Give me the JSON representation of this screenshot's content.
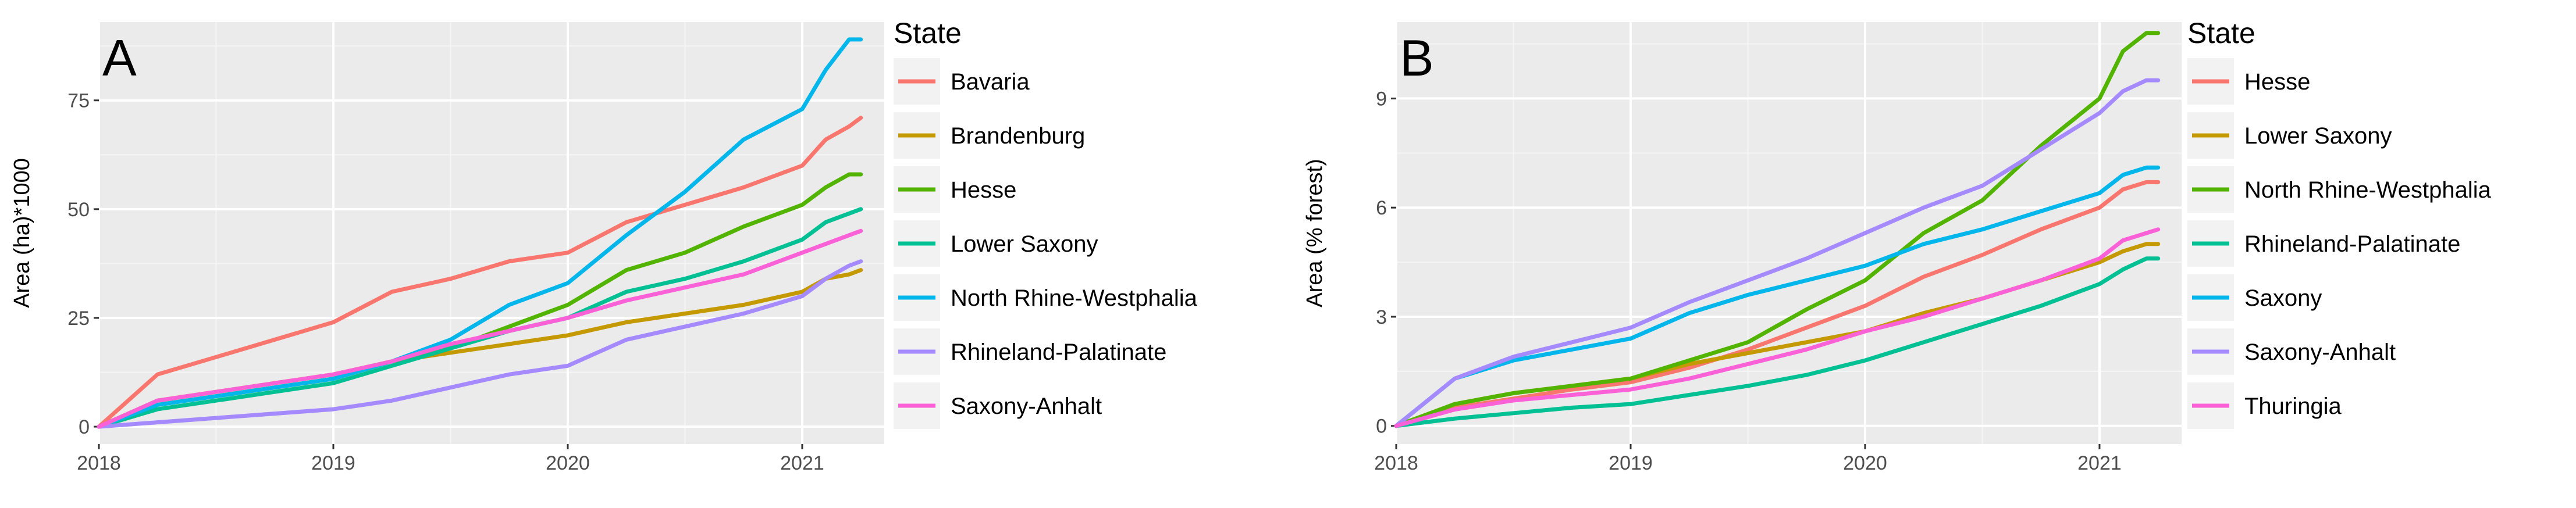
{
  "chart_data": [
    {
      "type": "line",
      "panel_label": "A",
      "ylabel": "Area (ha)*1000",
      "xlabel": "",
      "xlim": [
        2018.0,
        2021.35
      ],
      "ylim": [
        -4,
        93
      ],
      "x_ticks": [
        2018,
        2019,
        2020,
        2021
      ],
      "x_tick_labels": [
        "2018",
        "2019",
        "2020",
        "2021"
      ],
      "y_ticks": [
        0,
        25,
        50,
        75
      ],
      "y_tick_labels": [
        "0",
        "25",
        "50",
        "75"
      ],
      "legend_title": "State",
      "grid": true,
      "x": [
        2018.0,
        2018.25,
        2018.5,
        2018.75,
        2019.0,
        2019.25,
        2019.5,
        2019.75,
        2020.0,
        2020.25,
        2020.5,
        2020.75,
        2021.0,
        2021.1,
        2021.2,
        2021.25
      ],
      "series": [
        {
          "name": "Bavaria",
          "color": "#F8766D",
          "values": [
            0,
            12,
            16,
            20,
            24,
            31,
            34,
            38,
            40,
            47,
            51,
            55,
            60,
            66,
            69,
            71
          ]
        },
        {
          "name": "Brandenburg",
          "color": "#C49A00",
          "values": [
            0,
            6,
            8,
            10,
            12,
            15,
            17,
            19,
            21,
            24,
            26,
            28,
            31,
            34,
            35,
            36
          ]
        },
        {
          "name": "Hesse",
          "color": "#53B400",
          "values": [
            0,
            5,
            7,
            9,
            11,
            15,
            18,
            23,
            28,
            36,
            40,
            46,
            51,
            55,
            58,
            58
          ]
        },
        {
          "name": "Lower Saxony",
          "color": "#00C094",
          "values": [
            0,
            4,
            6,
            8,
            10,
            14,
            18,
            22,
            25,
            31,
            34,
            38,
            43,
            47,
            49,
            50
          ]
        },
        {
          "name": "North Rhine-Westphalia",
          "color": "#00B6EB",
          "values": [
            0,
            5,
            7,
            9,
            11,
            15,
            20,
            28,
            33,
            44,
            54,
            66,
            73,
            82,
            89,
            89
          ]
        },
        {
          "name": "Rhineland-Palatinate",
          "color": "#A58AFF",
          "values": [
            0,
            1,
            2,
            3,
            4,
            6,
            9,
            12,
            14,
            20,
            23,
            26,
            30,
            34,
            37,
            38
          ]
        },
        {
          "name": "Saxony-Anhalt",
          "color": "#FB61D7",
          "values": [
            0,
            6,
            8,
            10,
            12,
            15,
            19,
            22,
            25,
            29,
            32,
            35,
            40,
            42,
            44,
            45
          ]
        }
      ]
    },
    {
      "type": "line",
      "panel_label": "B",
      "ylabel": "Area (% forest)",
      "xlabel": "",
      "xlim": [
        2018.0,
        2021.35
      ],
      "ylim": [
        -0.5,
        11.1
      ],
      "x_ticks": [
        2018,
        2019,
        2020,
        2021
      ],
      "x_tick_labels": [
        "2018",
        "2019",
        "2020",
        "2021"
      ],
      "y_ticks": [
        0,
        3,
        6,
        9
      ],
      "y_tick_labels": [
        "0",
        "3",
        "6",
        "9"
      ],
      "legend_title": "State",
      "grid": true,
      "x": [
        2018.0,
        2018.25,
        2018.5,
        2018.75,
        2019.0,
        2019.25,
        2019.5,
        2019.75,
        2020.0,
        2020.25,
        2020.5,
        2020.75,
        2021.0,
        2021.1,
        2021.2,
        2021.25
      ],
      "series": [
        {
          "name": "Hesse",
          "color": "#F8766D",
          "values": [
            0,
            0.5,
            0.75,
            1.0,
            1.2,
            1.6,
            2.1,
            2.7,
            3.3,
            4.1,
            4.7,
            5.4,
            6.0,
            6.5,
            6.7,
            6.7
          ]
        },
        {
          "name": "Lower Saxony",
          "color": "#C49A00",
          "values": [
            0,
            0.6,
            0.9,
            1.1,
            1.3,
            1.7,
            2.0,
            2.3,
            2.6,
            3.1,
            3.5,
            4.0,
            4.5,
            4.8,
            5.0,
            5.0
          ]
        },
        {
          "name": "North Rhine-Westphalia",
          "color": "#53B400",
          "values": [
            0,
            0.6,
            0.9,
            1.1,
            1.3,
            1.8,
            2.3,
            3.2,
            4.0,
            5.3,
            6.2,
            7.7,
            9.0,
            10.3,
            10.8,
            10.8
          ]
        },
        {
          "name": "Rhineland-Palatinate",
          "color": "#00C094",
          "values": [
            0,
            0.2,
            0.35,
            0.5,
            0.6,
            0.85,
            1.1,
            1.4,
            1.8,
            2.3,
            2.8,
            3.3,
            3.9,
            4.3,
            4.6,
            4.6
          ]
        },
        {
          "name": "Saxony",
          "color": "#00B6EB",
          "values": [
            0,
            1.3,
            1.8,
            2.1,
            2.4,
            3.1,
            3.6,
            4.0,
            4.4,
            5.0,
            5.4,
            5.9,
            6.4,
            6.9,
            7.1,
            7.1
          ]
        },
        {
          "name": "Saxony-Anhalt",
          "color": "#A58AFF",
          "values": [
            0,
            1.3,
            1.9,
            2.3,
            2.7,
            3.4,
            4.0,
            4.6,
            5.3,
            6.0,
            6.6,
            7.6,
            8.6,
            9.2,
            9.5,
            9.5
          ]
        },
        {
          "name": "Thuringia",
          "color": "#FB61D7",
          "values": [
            0,
            0.45,
            0.7,
            0.85,
            1.0,
            1.3,
            1.7,
            2.1,
            2.6,
            3.0,
            3.5,
            4.0,
            4.6,
            5.1,
            5.3,
            5.4
          ]
        }
      ]
    }
  ]
}
